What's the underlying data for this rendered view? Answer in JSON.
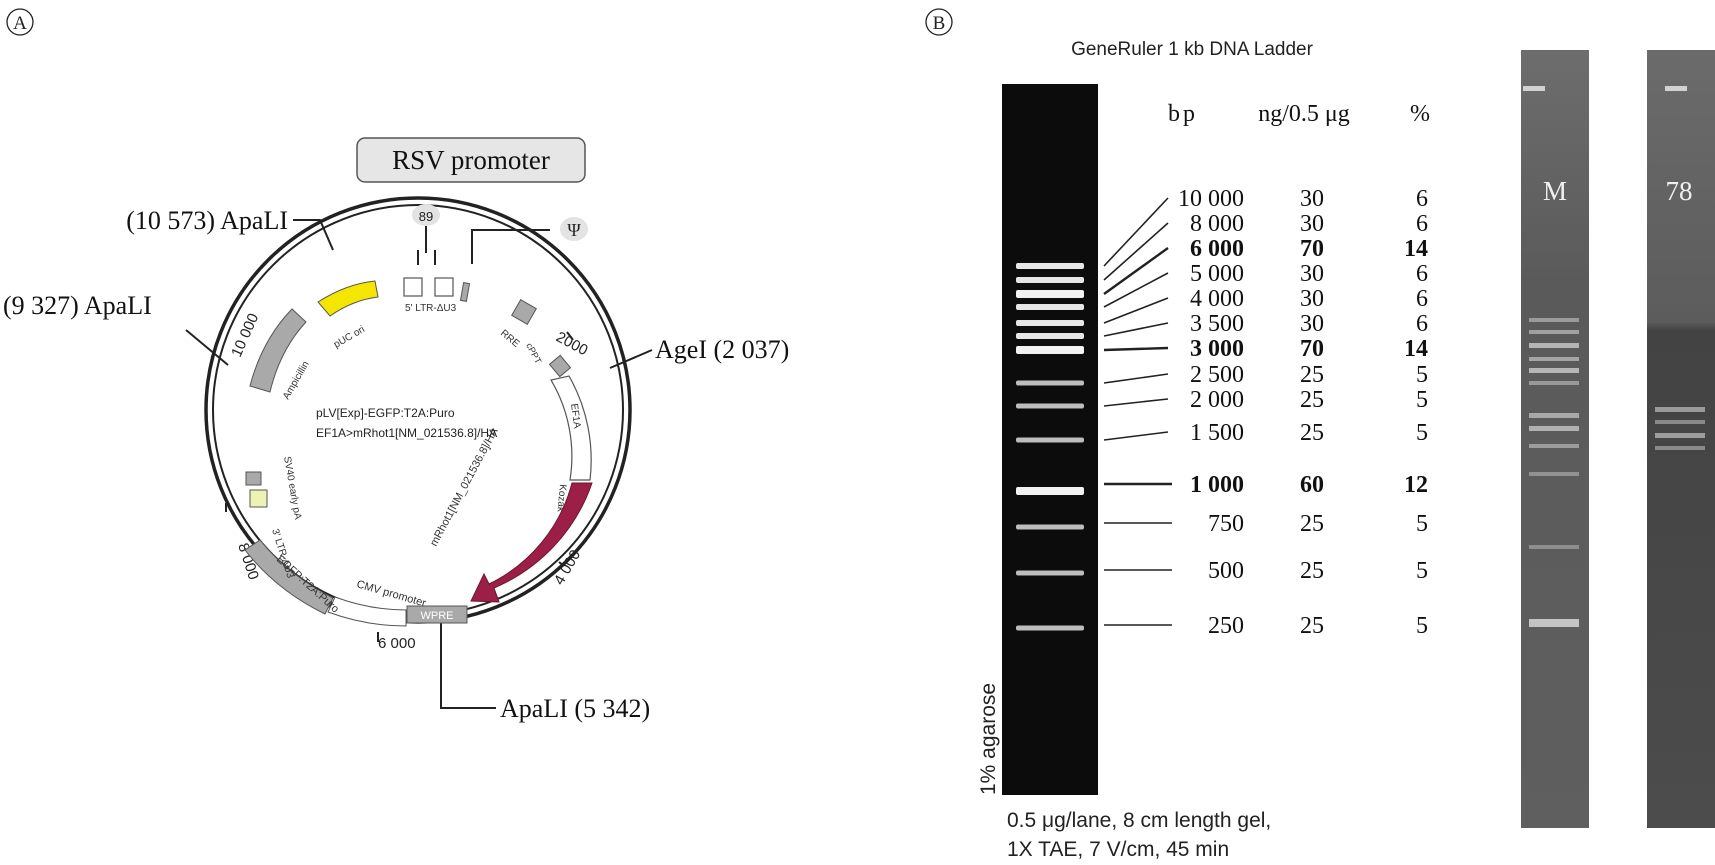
{
  "panels": {
    "a": "A",
    "b": "B"
  },
  "plasmid": {
    "center_line1": "pLV[Exp]-EGFP:T2A:Puro",
    "center_line2": "EF1A>mRhot1[NM_021536.8]/HA",
    "promoter_label": "RSV promoter",
    "promoter_pos": "89",
    "psi": "Ψ",
    "sites": {
      "apali_10573": "(10 573) ApaLI",
      "apali_9327": "(9 327) ApaLI",
      "agei": "AgeI (2 037)",
      "apali_5342": "ApaLI (5 342)"
    },
    "ticks": {
      "t2000": "2000",
      "t4000": "4 000",
      "t6000": "6 000",
      "t8000": "8 000",
      "t10000": "10 000"
    },
    "features": {
      "ltr5": "5' LTR-ΔU3",
      "rre": "RRE",
      "cppt": "cPPT",
      "ef1a": "EF1A",
      "kozak": "Kozak",
      "orf": "mRhot1[NM_021536.8]/HA",
      "wpre": "WPRE",
      "cmv": "CMV promoter",
      "egfp": "EGFP:T2A:Puro",
      "ltr3": "3' LTR-ΔU3",
      "sv40": "SV40 early pA",
      "amp": "Ampicillin",
      "puc": "pUC ori"
    },
    "colors": {
      "puc": "#f4e600",
      "orf": "#9b1f46",
      "gray_feature": "#a9a9a9",
      "light_green": "#eef2b6"
    }
  },
  "ladder": {
    "title": "GeneRuler 1 kb DNA Ladder",
    "headers": {
      "bp": "bp",
      "ng": "ng/0.5 μg",
      "pct": "%"
    },
    "rows": [
      {
        "bp": "10 000",
        "ng": "30",
        "pct": "6",
        "bold": false
      },
      {
        "bp": "8 000",
        "ng": "30",
        "pct": "6",
        "bold": false
      },
      {
        "bp": "6 000",
        "ng": "70",
        "pct": "14",
        "bold": true
      },
      {
        "bp": "5 000",
        "ng": "30",
        "pct": "6",
        "bold": false
      },
      {
        "bp": "4 000",
        "ng": "30",
        "pct": "6",
        "bold": false
      },
      {
        "bp": "3 500",
        "ng": "30",
        "pct": "6",
        "bold": false
      },
      {
        "bp": "3 000",
        "ng": "70",
        "pct": "14",
        "bold": true
      },
      {
        "bp": "2 500",
        "ng": "25",
        "pct": "5",
        "bold": false
      },
      {
        "bp": "2 000",
        "ng": "25",
        "pct": "5",
        "bold": false
      },
      {
        "bp": "1 500",
        "ng": "25",
        "pct": "5",
        "bold": false
      },
      {
        "bp": "1 000",
        "ng": "60",
        "pct": "12",
        "bold": true
      },
      {
        "bp": "750",
        "ng": "25",
        "pct": "5",
        "bold": false
      },
      {
        "bp": "500",
        "ng": "25",
        "pct": "5",
        "bold": false
      },
      {
        "bp": "250",
        "ng": "25",
        "pct": "5",
        "bold": false
      }
    ],
    "agarose": "1% agarose",
    "caption_line1": "0.5  μg/lane, 8 cm length gel,",
    "caption_line2": "1X TAE, 7 V/cm, 45 min"
  },
  "gel": {
    "lane_m": "M",
    "lane_78": "78"
  }
}
